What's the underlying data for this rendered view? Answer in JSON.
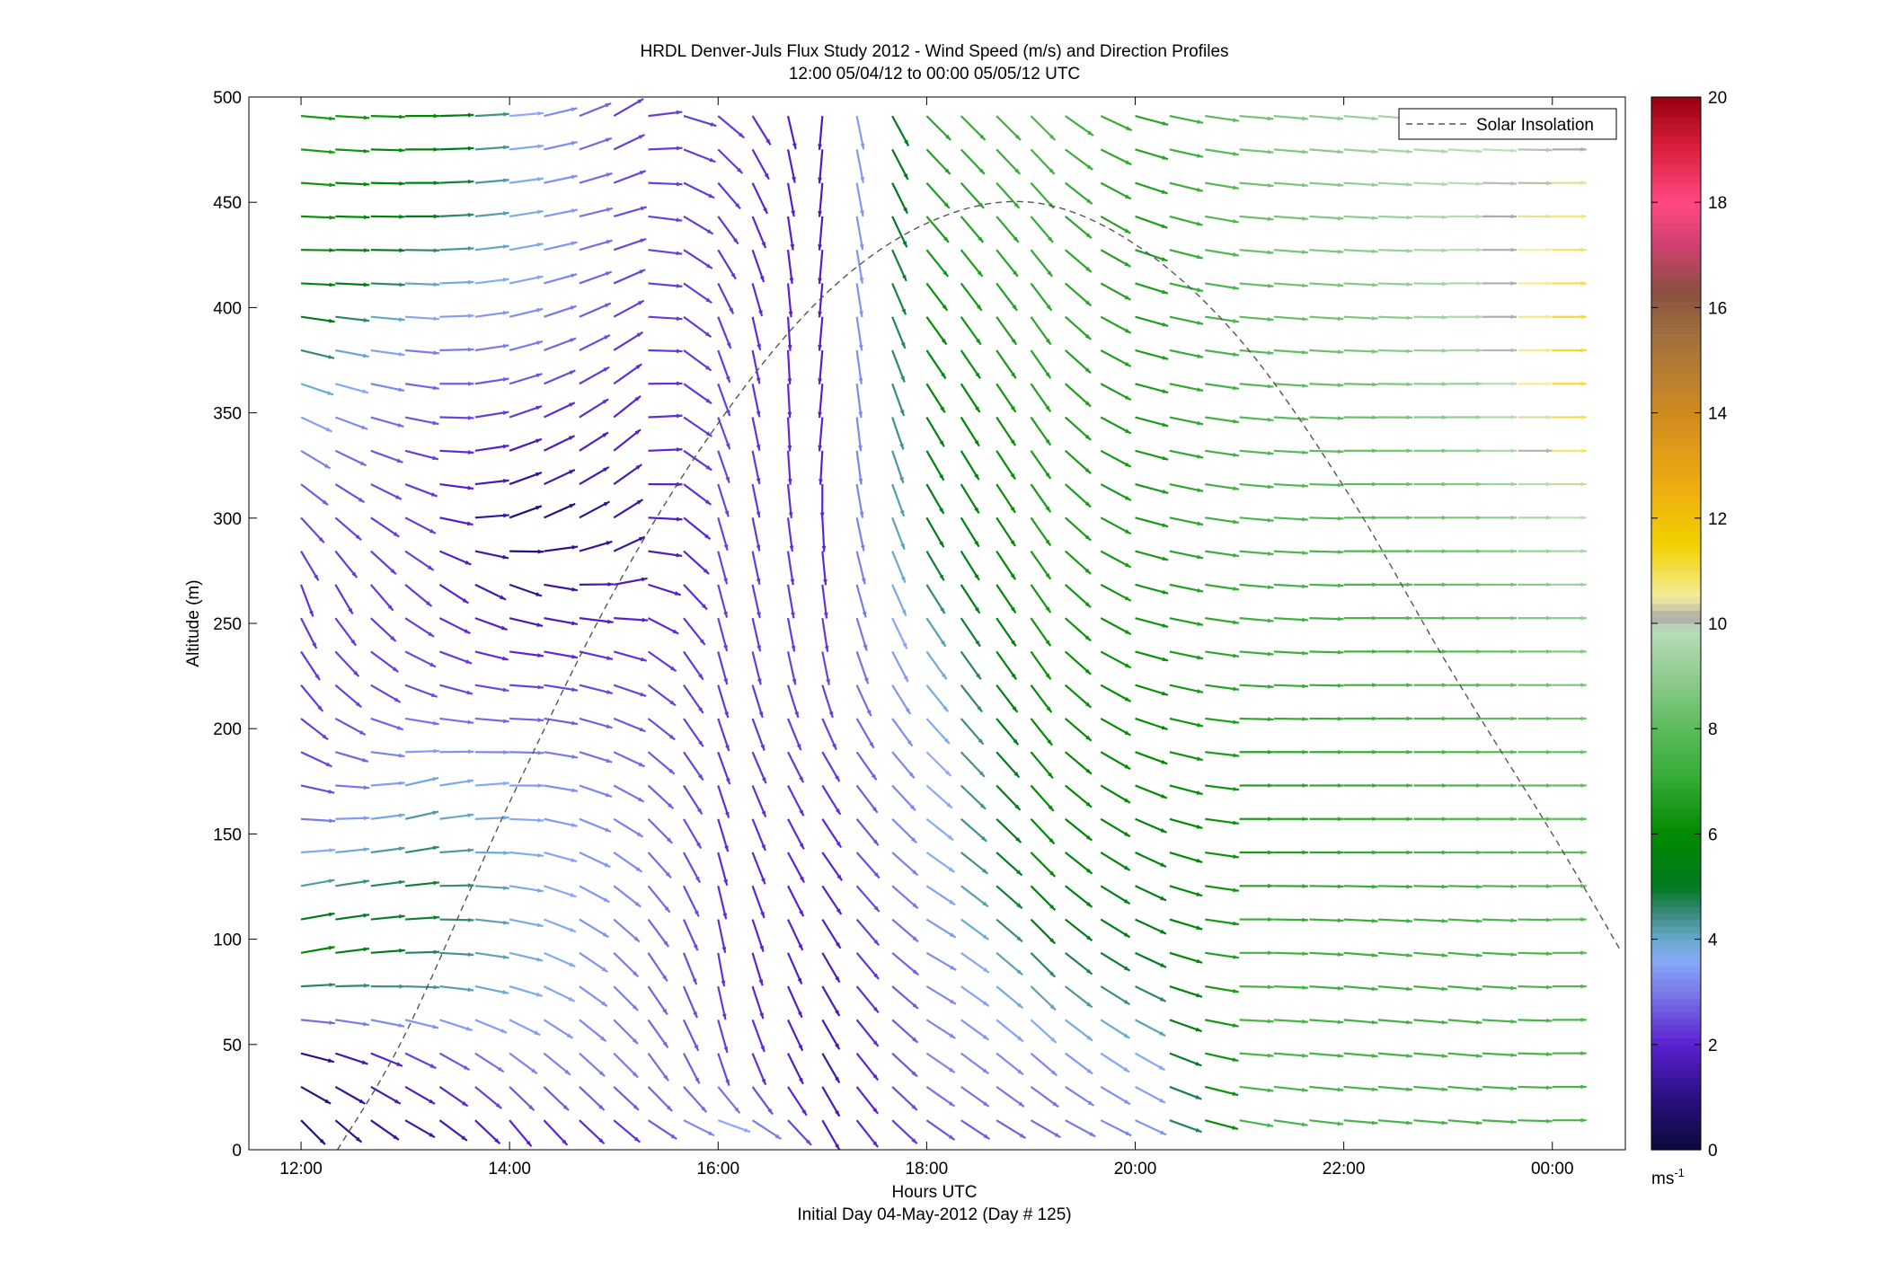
{
  "chart_data": {
    "type": "wind-barb-profile",
    "title": "HRDL Denver-Juls Flux Study 2012 - Wind Speed (m/s) and Direction Profiles",
    "subtitle": "12:00 05/04/12 to 00:00 05/05/12  UTC",
    "xlabel": "Hours UTC",
    "xlabel2": "Initial Day 04-May-2012 (Day # 125)",
    "ylabel": "Altitude (m)",
    "xlim_hours": [
      11.5,
      24.7
    ],
    "ylim": [
      0,
      500
    ],
    "x_ticks": [
      {
        "hour": 12,
        "label": "12:00"
      },
      {
        "hour": 14,
        "label": "14:00"
      },
      {
        "hour": 16,
        "label": "16:00"
      },
      {
        "hour": 18,
        "label": "18:00"
      },
      {
        "hour": 20,
        "label": "20:00"
      },
      {
        "hour": 22,
        "label": "22:00"
      },
      {
        "hour": 24,
        "label": "00:00"
      }
    ],
    "y_ticks": [
      0,
      50,
      100,
      150,
      200,
      250,
      300,
      350,
      400,
      450,
      500
    ],
    "legend": {
      "label": "Solar Insolation",
      "position": "top-right",
      "line_color": "#555555"
    },
    "solar_insolation_curve": {
      "points": [
        [
          12.35,
          0
        ],
        [
          13.0,
          55
        ],
        [
          14.0,
          165
        ],
        [
          15.0,
          265
        ],
        [
          16.0,
          345
        ],
        [
          17.0,
          405
        ],
        [
          18.0,
          440
        ],
        [
          19.0,
          450
        ],
        [
          20.0,
          430
        ],
        [
          21.0,
          385
        ],
        [
          22.0,
          315
        ],
        [
          23.0,
          230
        ],
        [
          24.0,
          150
        ],
        [
          24.65,
          95
        ]
      ]
    },
    "colorbar": {
      "min": 0,
      "max": 20,
      "ticks": [
        0,
        2,
        4,
        6,
        8,
        10,
        12,
        14,
        16,
        18,
        20
      ],
      "unit_label": "ms",
      "unit_exponent": "-1",
      "stops": [
        {
          "v": 0,
          "c": "#0a0a3c"
        },
        {
          "v": 1,
          "c": "#2a1080"
        },
        {
          "v": 2,
          "c": "#5a20d0"
        },
        {
          "v": 3,
          "c": "#7a7ae8"
        },
        {
          "v": 3.6,
          "c": "#88aaf8"
        },
        {
          "v": 4,
          "c": "#66aacc"
        },
        {
          "v": 4.5,
          "c": "#3a8a7a"
        },
        {
          "v": 5,
          "c": "#007a20"
        },
        {
          "v": 6,
          "c": "#008a00"
        },
        {
          "v": 7,
          "c": "#33aa33"
        },
        {
          "v": 8,
          "c": "#5cbb5c"
        },
        {
          "v": 9,
          "c": "#90cc90"
        },
        {
          "v": 9.9,
          "c": "#bbddbb"
        },
        {
          "v": 10.1,
          "c": "#aaaaaa"
        },
        {
          "v": 10.5,
          "c": "#f4ee9c"
        },
        {
          "v": 11.5,
          "c": "#f2d000"
        },
        {
          "v": 12.5,
          "c": "#f0b010"
        },
        {
          "v": 14,
          "c": "#d08a20"
        },
        {
          "v": 15.5,
          "c": "#a07040"
        },
        {
          "v": 16.3,
          "c": "#8a5040"
        },
        {
          "v": 17.2,
          "c": "#d04070"
        },
        {
          "v": 18,
          "c": "#ff4a80"
        },
        {
          "v": 19,
          "c": "#dd2040"
        },
        {
          "v": 20,
          "c": "#990010"
        }
      ]
    },
    "profile_times_hours": [
      12.0,
      12.33,
      12.67,
      13.0,
      13.33,
      13.67,
      14.0,
      14.33,
      14.67,
      15.0,
      15.33,
      15.67,
      16.0,
      16.33,
      16.67,
      17.0,
      17.33,
      17.67,
      18.0,
      18.33,
      18.67,
      19.0,
      19.33,
      19.67,
      20.0,
      20.33,
      20.67,
      21.0,
      21.33,
      21.67,
      22.0,
      22.33,
      22.67,
      23.0,
      23.33,
      23.67,
      24.0
    ],
    "wind_profiles": [
      {
        "t": 12.0,
        "levels": [
          [
            14,
            -45,
            1.0
          ],
          [
            45,
            -15,
            1.0
          ],
          [
            90,
            10,
            6
          ],
          [
            130,
            10,
            4
          ],
          [
            170,
            -10,
            2.5
          ],
          [
            220,
            -50,
            2.3
          ],
          [
            270,
            -70,
            2.2
          ],
          [
            310,
            -40,
            2.5
          ],
          [
            360,
            -20,
            3.8
          ],
          [
            420,
            0,
            6
          ],
          [
            470,
            -5,
            6.5
          ]
        ]
      },
      {
        "t": 13.0,
        "levels": [
          [
            14,
            -30,
            1.5
          ],
          [
            40,
            -30,
            2
          ],
          [
            80,
            0,
            4.5
          ],
          [
            120,
            5,
            5
          ],
          [
            170,
            15,
            4
          ],
          [
            220,
            -20,
            2.5
          ],
          [
            270,
            -40,
            2.3
          ],
          [
            330,
            -15,
            2.3
          ],
          [
            380,
            -5,
            3
          ],
          [
            440,
            0,
            5
          ],
          [
            490,
            0,
            6
          ]
        ]
      },
      {
        "t": 14.0,
        "levels": [
          [
            14,
            -50,
            2
          ],
          [
            40,
            -40,
            3
          ],
          [
            80,
            -15,
            3.8
          ],
          [
            120,
            -10,
            3.8
          ],
          [
            170,
            0,
            3.5
          ],
          [
            230,
            -5,
            2.2
          ],
          [
            270,
            -20,
            1.2
          ],
          [
            300,
            20,
            0.8
          ],
          [
            340,
            20,
            2
          ],
          [
            380,
            15,
            3
          ],
          [
            430,
            10,
            3.8
          ],
          [
            490,
            5,
            3.6
          ]
        ]
      },
      {
        "t": 15.0,
        "levels": [
          [
            14,
            -40,
            2.2
          ],
          [
            40,
            -45,
            3
          ],
          [
            90,
            -45,
            3
          ],
          [
            140,
            -35,
            3.2
          ],
          [
            190,
            -25,
            2.8
          ],
          [
            240,
            -15,
            2.2
          ],
          [
            290,
            30,
            1.3
          ],
          [
            340,
            40,
            2
          ],
          [
            390,
            30,
            2.3
          ],
          [
            440,
            15,
            2.5
          ],
          [
            490,
            30,
            2.3
          ]
        ]
      },
      {
        "t": 16.0,
        "levels": [
          [
            14,
            -20,
            3.6
          ],
          [
            40,
            -70,
            2.5
          ],
          [
            90,
            -80,
            2.2
          ],
          [
            140,
            -75,
            2.1
          ],
          [
            190,
            -70,
            2.2
          ],
          [
            240,
            -75,
            2.3
          ],
          [
            290,
            -75,
            2.4
          ],
          [
            340,
            -70,
            2.4
          ],
          [
            390,
            -70,
            2.3
          ],
          [
            440,
            -55,
            2.2
          ],
          [
            490,
            -40,
            2.3
          ]
        ]
      },
      {
        "t": 17.0,
        "levels": [
          [
            14,
            -60,
            1.8
          ],
          [
            40,
            -60,
            1.5
          ],
          [
            90,
            -60,
            1.7
          ],
          [
            140,
            -55,
            2.0
          ],
          [
            190,
            -60,
            2.3
          ],
          [
            240,
            -80,
            2.4
          ],
          [
            290,
            -85,
            2.1
          ],
          [
            340,
            -95,
            2.0
          ],
          [
            390,
            -95,
            1.9
          ],
          [
            440,
            -95,
            1.8
          ],
          [
            490,
            -95,
            1.7
          ]
        ]
      },
      {
        "t": 18.0,
        "levels": [
          [
            14,
            -35,
            2.6
          ],
          [
            40,
            -35,
            3.1
          ],
          [
            90,
            -30,
            3.2
          ],
          [
            140,
            -35,
            3.6
          ],
          [
            190,
            -45,
            3.6
          ],
          [
            240,
            -55,
            3.9
          ],
          [
            290,
            -60,
            5
          ],
          [
            340,
            -60,
            5.5
          ],
          [
            390,
            -55,
            6
          ],
          [
            440,
            -50,
            6.5
          ],
          [
            490,
            -45,
            6.8
          ]
        ]
      },
      {
        "t": 19.0,
        "levels": [
          [
            14,
            -30,
            2.8
          ],
          [
            40,
            -40,
            3
          ],
          [
            90,
            -45,
            4.5
          ],
          [
            140,
            -45,
            6
          ],
          [
            190,
            -50,
            6
          ],
          [
            240,
            -55,
            6.2
          ],
          [
            290,
            -55,
            6.5
          ],
          [
            340,
            -55,
            6.5
          ],
          [
            390,
            -55,
            6.8
          ],
          [
            440,
            -50,
            7
          ],
          [
            490,
            -45,
            7.5
          ]
        ]
      },
      {
        "t": 20.0,
        "levels": [
          [
            14,
            -25,
            3.3
          ],
          [
            40,
            -30,
            3.5
          ],
          [
            90,
            -25,
            5
          ],
          [
            140,
            -25,
            5.5
          ],
          [
            190,
            -20,
            6
          ],
          [
            240,
            -15,
            6.2
          ],
          [
            290,
            -15,
            6.5
          ],
          [
            340,
            -15,
            6.5
          ],
          [
            390,
            -15,
            6.6
          ],
          [
            440,
            -20,
            6.6
          ],
          [
            490,
            -15,
            6.8
          ]
        ]
      },
      {
        "t": 21.0,
        "levels": [
          [
            14,
            -10,
            7.5
          ],
          [
            40,
            -5,
            7.6
          ],
          [
            90,
            0,
            7.5
          ],
          [
            140,
            0,
            6.5
          ],
          [
            190,
            0,
            6.8
          ],
          [
            240,
            -5,
            7.2
          ],
          [
            290,
            -5,
            7.6
          ],
          [
            340,
            -5,
            7.8
          ],
          [
            390,
            -5,
            8
          ],
          [
            440,
            -5,
            8.3
          ],
          [
            490,
            -5,
            8.5
          ]
        ]
      },
      {
        "t": 22.0,
        "levels": [
          [
            14,
            -5,
            7.5
          ],
          [
            40,
            -5,
            7.5
          ],
          [
            90,
            -5,
            7.3
          ],
          [
            140,
            0,
            7
          ],
          [
            190,
            0,
            7.2
          ],
          [
            240,
            0,
            7.4
          ],
          [
            290,
            0,
            7.8
          ],
          [
            340,
            0,
            8.2
          ],
          [
            390,
            -3,
            8.6
          ],
          [
            440,
            -3,
            9
          ],
          [
            490,
            -5,
            9.2
          ]
        ]
      },
      {
        "t": 23.0,
        "levels": [
          [
            14,
            -5,
            7.5
          ],
          [
            40,
            -5,
            7.5
          ],
          [
            90,
            -5,
            7.4
          ],
          [
            140,
            0,
            7.6
          ],
          [
            190,
            0,
            7.7
          ],
          [
            240,
            0,
            8
          ],
          [
            290,
            0,
            8.5
          ],
          [
            340,
            0,
            9
          ],
          [
            390,
            0,
            9.6
          ],
          [
            440,
            0,
            9.8
          ],
          [
            490,
            -5,
            9.8
          ]
        ]
      },
      {
        "t": 24.0,
        "levels": [
          [
            14,
            0,
            7.5
          ],
          [
            40,
            0,
            7.6
          ],
          [
            90,
            0,
            7.8
          ],
          [
            140,
            0,
            8
          ],
          [
            190,
            0,
            8.3
          ],
          [
            240,
            0,
            8.8
          ],
          [
            290,
            0,
            9.6
          ],
          [
            340,
            0,
            11
          ],
          [
            390,
            0,
            11.2
          ],
          [
            440,
            0,
            10.8
          ],
          [
            490,
            0,
            9.8
          ]
        ]
      }
    ]
  }
}
